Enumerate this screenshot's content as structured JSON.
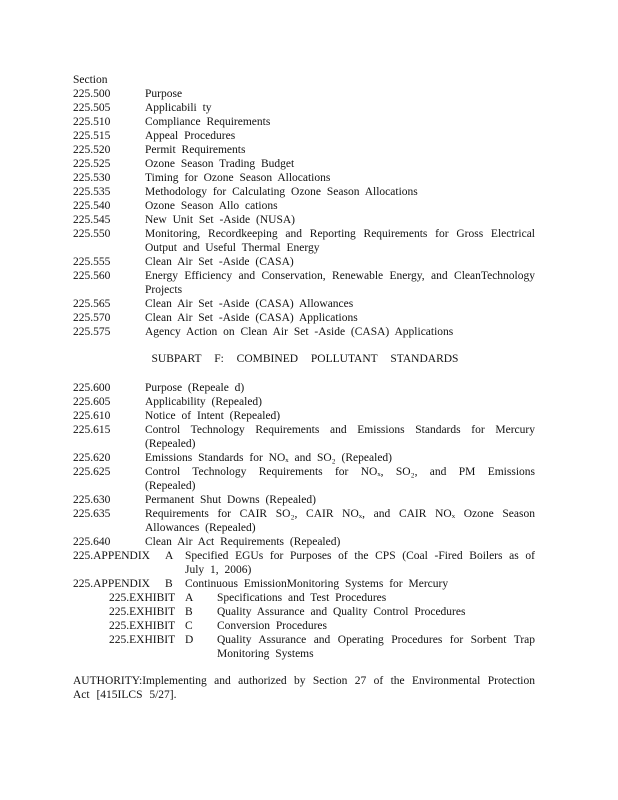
{
  "header": "Section",
  "sections": [
    {
      "number": "225.500",
      "title": "Purpose"
    },
    {
      "number": "225.505",
      "title": "Applicabili   ty"
    },
    {
      "number": "225.510",
      "title": "Compliance   Requirements"
    },
    {
      "number": "225.515",
      "title": "Appeal   Procedures"
    },
    {
      "number": "225.520",
      "title": "Permit   Requirements"
    },
    {
      "number": "225.525",
      "title": "Ozone   Season  Trading   Budget"
    },
    {
      "number": "225.530",
      "title": "Timing   for  Ozone   Season   Allocations"
    },
    {
      "number": "225.535",
      "title": "Methodology   for  Calculating   Ozone   Season   Allocations"
    },
    {
      "number": "225.540",
      "title": "Ozone   Season   Allo cations"
    },
    {
      "number": "225.545",
      "title": "New  Unit  Set -Aside  (NUSA)"
    },
    {
      "number": "225.550",
      "title": "Monitoring,  Recordkeeping  and Reporting  Requirements  for Gross  Electrical Output  and  Useful  Thermal  Energy"
    },
    {
      "number": "225.555",
      "title": "Clean  Air  Set -Aside  (CASA)"
    },
    {
      "number": "225.560",
      "title": "Energy  Efficiency  and Conservation,  Renewable  Energy,  and CleanTechnology Projects"
    },
    {
      "number": "225.565",
      "title": "Clean  Air  Set -Aside  (CASA)  Allowances"
    },
    {
      "number": "225.570",
      "title": "Clean  Air  Set -Aside  (CASA)  Applications"
    },
    {
      "number": "225.575",
      "title": "Agency  Action  on  Clean  Air  Set -Aside  (CASA)  Applications"
    }
  ],
  "subpart_heading": "SUBPART F: COMBINED POLLUTANT STANDARDS",
  "subpart_sections": [
    {
      "number": "225.600",
      "title": "Purpose  (Repeale  d)"
    },
    {
      "number": "225.605",
      "title": "Applicability  (Repealed)"
    },
    {
      "number": "225.610",
      "title": "Notice  of Intent  (Repealed)"
    },
    {
      "number": "225.615",
      "title": "Control  Technology  Requirements  and Emissions  Standards  for  Mercury (Repealed)"
    },
    {
      "number": "225.620",
      "title": "Emissions  Standards  for  NOₓ and  SO₂ (Repealed)"
    },
    {
      "number": "225.625",
      "title": "Control  Technology  Requirements  for NOₓ, SO₂, and  PM  Emissions  (Repealed)"
    },
    {
      "number": "225.630",
      "title": "Permanent  Shut  Downs  (Repealed)"
    },
    {
      "number": "225.635",
      "title": "Requirements  for CAIR  SO₂, CAIR  NOₓ, and  CAIR  NOₓ Ozone  Season Allowances  (Repealed)"
    },
    {
      "number": "225.640",
      "title": "Clean  Air  Act  Requirements  (Repealed)"
    }
  ],
  "appendices": [
    {
      "number": "225.APPENDIX",
      "letter": "A",
      "title": "Specified  EGUs  for  Purposes  of the  CPS  (Coal -Fired  Boilers  as of July  1, 2006)"
    },
    {
      "number": "225.APPENDIX",
      "letter": "B",
      "title": "Continuous  EmissionMonitoring  Systems  for  Mercury"
    }
  ],
  "exhibits": [
    {
      "number": "225.EXHIBIT",
      "letter": "A",
      "title": "Specifications  and  Test  Procedures"
    },
    {
      "number": "225.EXHIBIT",
      "letter": "B",
      "title": "Quality  Assurance  and  Quality  Control  Procedures"
    },
    {
      "number": "225.EXHIBIT",
      "letter": "C",
      "title": "Conversion  Procedures"
    },
    {
      "number": "225.EXHIBIT",
      "letter": "D",
      "title": "Quality  Assurance  and  Operating  Procedures  for  Sorbent  Trap Monitoring  Systems"
    }
  ],
  "authority": "AUTHORITY:Implementing      and  authorized  by Section  27  of the  Environmental  Protection  Act [415ILCS  5/27]."
}
